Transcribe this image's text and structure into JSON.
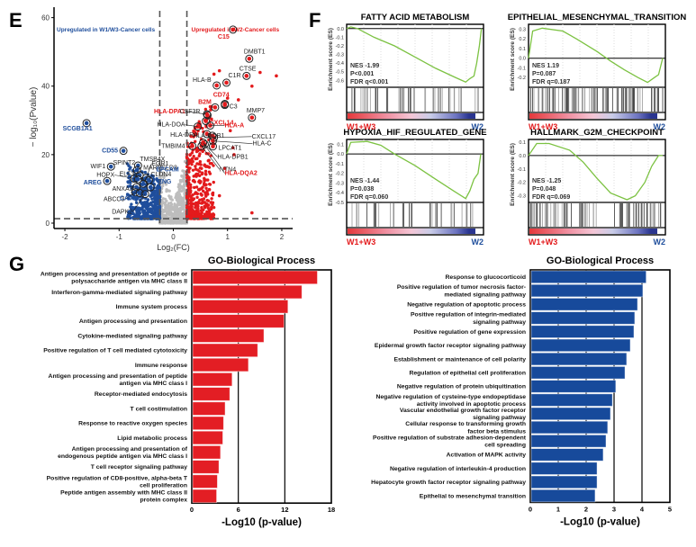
{
  "panels": {
    "E": "E",
    "F": "F",
    "G": "G"
  },
  "colors": {
    "up_w2": "#e31a1c",
    "up_w1w3": "#1f4e9c",
    "ns": "#bdbdbd",
    "gsea_line": "#7cc242",
    "go_left": "#e31e24",
    "go_right": "#174a9b"
  },
  "chart_data": [
    {
      "id": "volcano",
      "type": "scatter",
      "title": "",
      "xlabel": "Log₂(FC)",
      "ylabel": "− log₁₀(Pvalue)",
      "xlim": [
        -2.2,
        2.2
      ],
      "ylim": [
        0,
        62
      ],
      "xticks": [
        "-2",
        "-1",
        "0",
        "1",
        "2"
      ],
      "yticks": [
        "0",
        "20",
        "40",
        "60"
      ],
      "thresholds": {
        "log2fc": [
          -0.25,
          0.25
        ],
        "neglog10p": 1.3
      },
      "annotations": {
        "left": "Upregulated in W1/W3-Cancer cells",
        "right": "Upregulated in W2-Cancer cells"
      },
      "labeled_points": [
        {
          "gene": "C15",
          "x": 1.1,
          "y": 56.5,
          "group": "up",
          "label_color": "red"
        },
        {
          "gene": "DMBT1",
          "x": 1.4,
          "y": 48,
          "group": "up",
          "label_color": "black"
        },
        {
          "gene": "CTSE",
          "x": 1.35,
          "y": 43,
          "group": "up",
          "label_color": "black"
        },
        {
          "gene": "HLA-B",
          "x": 0.8,
          "y": 40.2,
          "group": "up",
          "label_color": "black"
        },
        {
          "gene": "C1R",
          "x": 0.98,
          "y": 41,
          "group": "up",
          "label_color": "black"
        },
        {
          "gene": "CD74",
          "x": 0.95,
          "y": 34.8,
          "group": "up",
          "label_color": "red"
        },
        {
          "gene": "B2M",
          "x": 0.77,
          "y": 33.8,
          "group": "up",
          "label_color": "red"
        },
        {
          "gene": "C3",
          "x": 0.95,
          "y": 34.5,
          "group": "up",
          "label_color": "black"
        },
        {
          "gene": "MMP7",
          "x": 1.45,
          "y": 30.8,
          "group": "up",
          "label_color": "black"
        },
        {
          "gene": "HLA-DPA1",
          "x": 0.62,
          "y": 31.8,
          "group": "up",
          "label_color": "red"
        },
        {
          "gene": "CSF3R",
          "x": 0.63,
          "y": 31.5,
          "group": "up",
          "label_color": "black"
        },
        {
          "gene": "CXCL14",
          "x": 0.6,
          "y": 29.8,
          "group": "up",
          "label_color": "red"
        },
        {
          "gene": "HLA-DOA",
          "x": 0.45,
          "y": 28.2,
          "group": "up",
          "label_color": "black"
        },
        {
          "gene": "HLA-A",
          "x": 0.68,
          "y": 28.5,
          "group": "up",
          "label_color": "red"
        },
        {
          "gene": "CXCL17",
          "x": 0.75,
          "y": 25,
          "group": "up",
          "label_color": "black"
        },
        {
          "gene": "HLA-DRA",
          "x": 0.62,
          "y": 26,
          "group": "up",
          "label_color": "black"
        },
        {
          "gene": "HLA-DQB1",
          "x": 0.72,
          "y": 25.5,
          "group": "up",
          "label_color": "black"
        },
        {
          "gene": "HLA-C",
          "x": 0.73,
          "y": 24,
          "group": "up",
          "label_color": "black"
        },
        {
          "gene": "TMBIM4",
          "x": 0.35,
          "y": 22.5,
          "group": "up",
          "label_color": "black"
        },
        {
          "gene": "LPCAT1",
          "x": 0.73,
          "y": 22.4,
          "group": "up",
          "label_color": "black"
        },
        {
          "gene": "HLA-DPB1",
          "x": 0.58,
          "y": 23,
          "group": "up",
          "label_color": "black"
        },
        {
          "gene": "NTN4",
          "x": 0.52,
          "y": 22.5,
          "group": "up",
          "label_color": "black"
        },
        {
          "gene": "HLA-DQA2",
          "x": 0.55,
          "y": 23.5,
          "group": "up",
          "label_color": "red"
        },
        {
          "gene": "SCGB1A1",
          "x": -1.6,
          "y": 29.2,
          "group": "down",
          "label_color": "blue"
        },
        {
          "gene": "CD55",
          "x": -0.92,
          "y": 21.1,
          "group": "down",
          "label_color": "blue"
        },
        {
          "gene": "TMSB4X",
          "x": -0.65,
          "y": 16.8,
          "group": "down",
          "label_color": "black"
        },
        {
          "gene": "WIF1",
          "x": -1.15,
          "y": 16.5,
          "group": "down",
          "label_color": "black"
        },
        {
          "gene": "SPINT2",
          "x": -0.67,
          "y": 15.5,
          "group": "down",
          "label_color": "black"
        },
        {
          "gene": "EGR1",
          "x": -0.5,
          "y": 13.2,
          "group": "down",
          "label_color": "black"
        },
        {
          "gene": "MARVELD3",
          "x": -0.62,
          "y": 14,
          "group": "down",
          "label_color": "black"
        },
        {
          "gene": "EPCAM",
          "x": -0.45,
          "y": 12.5,
          "group": "down",
          "label_color": "blue"
        },
        {
          "gene": "HOPX",
          "x": -0.72,
          "y": 13,
          "group": "down",
          "label_color": "black"
        },
        {
          "gene": "ELF3",
          "x": -0.65,
          "y": 12.8,
          "group": "down",
          "label_color": "black"
        },
        {
          "gene": "CLDN4",
          "x": -0.55,
          "y": 11.5,
          "group": "down",
          "label_color": "black"
        },
        {
          "gene": "AREG",
          "x": -1.22,
          "y": 12.3,
          "group": "down",
          "label_color": "blue"
        },
        {
          "gene": "ANXA3",
          "x": -0.68,
          "y": 10.5,
          "group": "down",
          "label_color": "black"
        },
        {
          "gene": "ENG",
          "x": -0.42,
          "y": 10.5,
          "group": "down",
          "label_color": "blue"
        },
        {
          "gene": "ABCC3",
          "x": -0.7,
          "y": 9,
          "group": "down",
          "label_color": "black"
        },
        {
          "gene": "CAV2",
          "x": -0.62,
          "y": 8.8,
          "group": "down",
          "label_color": "blue"
        },
        {
          "gene": "DAPK2",
          "x": -0.52,
          "y": 8.5,
          "group": "down",
          "label_color": "black"
        }
      ]
    },
    {
      "id": "gsea",
      "type": "line",
      "ylabel": "Enrichment score (ES)",
      "group_left": "W1+W3",
      "group_right": "W2",
      "panels": [
        {
          "title": "FATTY ACID METABOLISM",
          "nes": "NES  -1.99",
          "p": "P<0.001",
          "fdr": "FDR q<0.001",
          "ylim": [
            -0.68,
            0.05
          ],
          "yticks": [
            "0.0",
            "-0.1",
            "-0.2",
            "-0.3",
            "-0.4",
            "-0.5",
            "-0.6"
          ],
          "curve": [
            [
              0,
              0.0
            ],
            [
              0.03,
              0.02
            ],
            [
              0.08,
              0.0
            ],
            [
              0.2,
              -0.1
            ],
            [
              0.35,
              -0.2
            ],
            [
              0.5,
              -0.33
            ],
            [
              0.65,
              -0.46
            ],
            [
              0.8,
              -0.57
            ],
            [
              0.87,
              -0.62
            ],
            [
              0.9,
              -0.58
            ],
            [
              0.93,
              -0.55
            ],
            [
              0.95,
              -0.4
            ],
            [
              0.97,
              -0.2
            ],
            [
              0.985,
              0.0
            ]
          ]
        },
        {
          "title": "EPITHELIAL_MESENCHYMAL_TRANSITION",
          "nes": "NES  1.19",
          "p": "P=0.087",
          "fdr": "FDR q=0.187",
          "ylim": [
            -0.3,
            0.35
          ],
          "yticks": [
            "0.3",
            "0.2",
            "0.1",
            "0.0",
            "-0.1",
            "-0.2"
          ],
          "curve": [
            [
              0,
              0.0
            ],
            [
              0.03,
              0.28
            ],
            [
              0.1,
              0.31
            ],
            [
              0.25,
              0.28
            ],
            [
              0.35,
              0.2
            ],
            [
              0.5,
              0.07
            ],
            [
              0.6,
              -0.03
            ],
            [
              0.7,
              -0.12
            ],
            [
              0.8,
              -0.2
            ],
            [
              0.87,
              -0.25
            ],
            [
              0.92,
              -0.2
            ],
            [
              0.95,
              -0.17
            ],
            [
              0.98,
              0.0
            ]
          ]
        },
        {
          "title": "HYPOXIA_HIF_REGULATED_GENE",
          "nes": "NES  -1.44",
          "p": "P=0.038",
          "fdr": "FDR q=0.060",
          "ylim": [
            -0.5,
            0.15
          ],
          "yticks": [
            "0.1",
            "0.0",
            "-0.1",
            "-0.2",
            "-0.3",
            "-0.4",
            "-0.5"
          ],
          "curve": [
            [
              0,
              0.0
            ],
            [
              0.03,
              0.12
            ],
            [
              0.15,
              0.13
            ],
            [
              0.25,
              0.09
            ],
            [
              0.35,
              0.0
            ],
            [
              0.5,
              -0.12
            ],
            [
              0.65,
              -0.26
            ],
            [
              0.78,
              -0.38
            ],
            [
              0.87,
              -0.46
            ],
            [
              0.9,
              -0.38
            ],
            [
              0.93,
              -0.26
            ],
            [
              0.96,
              -0.2
            ],
            [
              0.98,
              0.0
            ]
          ]
        },
        {
          "title": "HALLMARK_G2M_CHECKPOINT",
          "nes": "NES  -1.25",
          "p": "P=0.048",
          "fdr": "FDR q=0.069",
          "ylim": [
            -0.35,
            0.12
          ],
          "yticks": [
            "0.1",
            "0.0",
            "-0.1",
            "-0.2",
            "-0.3"
          ],
          "curve": [
            [
              0,
              0.0
            ],
            [
              0.06,
              0.09
            ],
            [
              0.15,
              0.09
            ],
            [
              0.3,
              0.04
            ],
            [
              0.4,
              -0.05
            ],
            [
              0.5,
              -0.17
            ],
            [
              0.6,
              -0.28
            ],
            [
              0.72,
              -0.33
            ],
            [
              0.78,
              -0.3
            ],
            [
              0.85,
              -0.2
            ],
            [
              0.9,
              -0.08
            ],
            [
              0.95,
              0.0
            ],
            [
              0.98,
              0.0
            ]
          ]
        }
      ]
    },
    {
      "id": "go_left",
      "type": "bar",
      "orientation": "horizontal",
      "title": "GO-Biological Process",
      "xlabel": "-Log10 (p-value)",
      "xlim": [
        0,
        18
      ],
      "xticks": [
        "0",
        "6",
        "12",
        "18"
      ],
      "categories": [
        [
          "Antigen processing and presentation of peptide or",
          "polysaccharide antigen via MHC class II"
        ],
        [
          "Interferon-gamma-mediated signaling pathway"
        ],
        [
          "Immune system process"
        ],
        [
          "Antigen processing and presentation"
        ],
        [
          "Cytokine-mediated signaling pathway"
        ],
        [
          "Positive regulation of T cell mediated cytotoxicity"
        ],
        [
          "Immune response"
        ],
        [
          "Antigen processing and presentation of peptide",
          "antigen via MHC class I"
        ],
        [
          "Receptor-mediated endocytosis"
        ],
        [
          "T cell costimulation"
        ],
        [
          "Response to reactive oxygen species"
        ],
        [
          "Lipid metabolic process"
        ],
        [
          "Antigen processing and presentation of",
          "endogenous peptide antigen via MHC class I"
        ],
        [
          "T cell receptor signaling pathway"
        ],
        [
          "Positive regulation of CD8-positive, alpha-beta T",
          "cell proliferation"
        ],
        [
          "Peptide antigen assembly with MHC class II",
          "protein complex"
        ]
      ],
      "values": [
        16.2,
        14.2,
        12.4,
        11.9,
        9.3,
        8.5,
        7.3,
        5.2,
        4.9,
        4.3,
        4.1,
        4.0,
        3.7,
        3.5,
        3.3,
        3.2
      ]
    },
    {
      "id": "go_right",
      "type": "bar",
      "orientation": "horizontal",
      "title": "GO-Biological Process",
      "xlabel": "-Log10 (p-value)",
      "xlim": [
        0,
        5
      ],
      "xticks": [
        "0",
        "1",
        "2",
        "3",
        "4",
        "5"
      ],
      "categories": [
        [
          "Response to glucocorticoid"
        ],
        [
          "Positive regulation of tumor necrosis factor-",
          "mediated signaling pathway"
        ],
        [
          "Negative regulation of apoptotic process"
        ],
        [
          "Positive regulation of integrin-mediated",
          "signaling pathway"
        ],
        [
          "Positive regulation of gene expression"
        ],
        [
          "Epidermal growth factor receptor signaling pathway"
        ],
        [
          "Establishment or maintenance of cell polarity"
        ],
        [
          "Regulation of epithelial cell proliferation"
        ],
        [
          "Negative regulation of protein ubiquitination"
        ],
        [
          "Negative regulation of cysteine-type endopeptidase",
          "activity involved in apoptotic process"
        ],
        [
          "Vascular endothelial growth factor receptor",
          "signaling pathway"
        ],
        [
          "Cellular response to transforming growth",
          "factor beta stimulus"
        ],
        [
          "Positive regulation of substrate adhesion-dependent",
          "cell spreading"
        ],
        [
          "Activation of MAPK activity"
        ],
        [
          "Negative regulation of interleukin-4 production"
        ],
        [
          "Hepatocyte growth factor receptor signaling pathway"
        ],
        [
          "Epithelial to mesenchymal transition"
        ]
      ],
      "values": [
        4.15,
        4.03,
        3.84,
        3.74,
        3.71,
        3.58,
        3.45,
        3.39,
        3.06,
        2.94,
        2.87,
        2.77,
        2.71,
        2.61,
        2.39,
        2.39,
        2.32
      ]
    }
  ]
}
